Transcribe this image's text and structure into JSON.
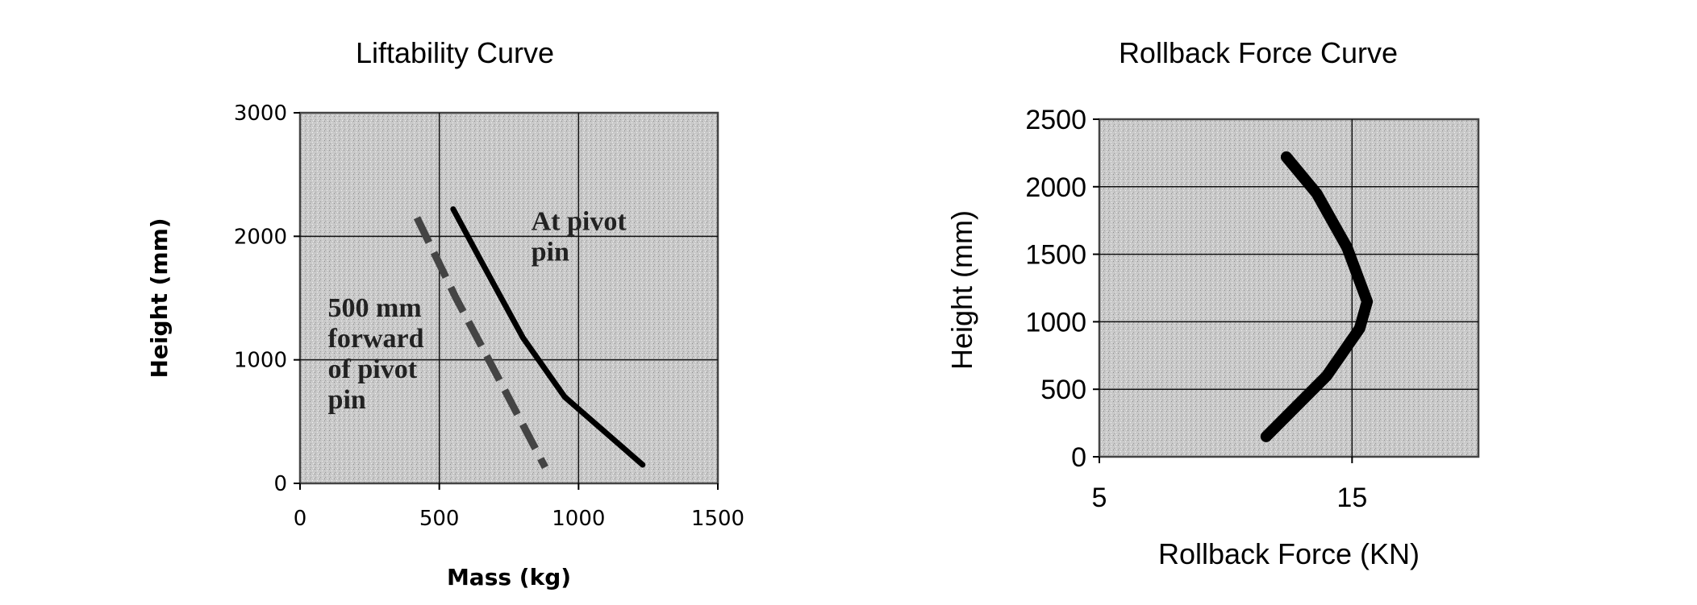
{
  "chart_data": [
    {
      "type": "line",
      "title": "Liftability Curve",
      "xlabel": "Mass (kg)",
      "ylabel": "Height (mm)",
      "xlim": [
        0,
        1500
      ],
      "ylim": [
        0,
        3000
      ],
      "xticks": [
        "0",
        "500",
        "1000",
        "1500"
      ],
      "yticks": [
        "0",
        "1000",
        "2000",
        "3000"
      ],
      "grid": true,
      "series": [
        {
          "style": "solid",
          "color": "#000000",
          "points": [
            [
              550,
              2220
            ],
            [
              650,
              1800
            ],
            [
              800,
              1180
            ],
            [
              950,
              700
            ],
            [
              1230,
              150
            ]
          ]
        },
        {
          "style": "dashed",
          "color": "#444444",
          "points": [
            [
              420,
              2150
            ],
            [
              560,
              1500
            ],
            [
              720,
              820
            ],
            [
              880,
              130
            ]
          ]
        }
      ],
      "annotations": [
        {
          "lines": [
            "At pivot",
            "pin"
          ],
          "x": 830,
          "y": 2050
        },
        {
          "lines": [
            "500 mm",
            "forward",
            "of pivot",
            "pin"
          ],
          "x": 100,
          "y": 1350
        }
      ]
    },
    {
      "type": "line",
      "title": "Rollback Force Curve",
      "xlabel": "Rollback Force (KN)",
      "ylabel": "Height (mm)",
      "xlim": [
        5,
        20
      ],
      "ylim": [
        0,
        2500
      ],
      "xticks": [
        "5",
        "15"
      ],
      "xtick_values": [
        5,
        15
      ],
      "yticks": [
        "0",
        "500",
        "1000",
        "1500",
        "2000",
        "2500"
      ],
      "grid": true,
      "series": [
        {
          "style": "solid",
          "color": "#000000",
          "points": [
            [
              12.4,
              2220
            ],
            [
              13.6,
              1950
            ],
            [
              14.8,
              1550
            ],
            [
              15.6,
              1150
            ],
            [
              15.3,
              950
            ],
            [
              14.0,
              600
            ],
            [
              11.6,
              150
            ]
          ]
        }
      ]
    }
  ]
}
